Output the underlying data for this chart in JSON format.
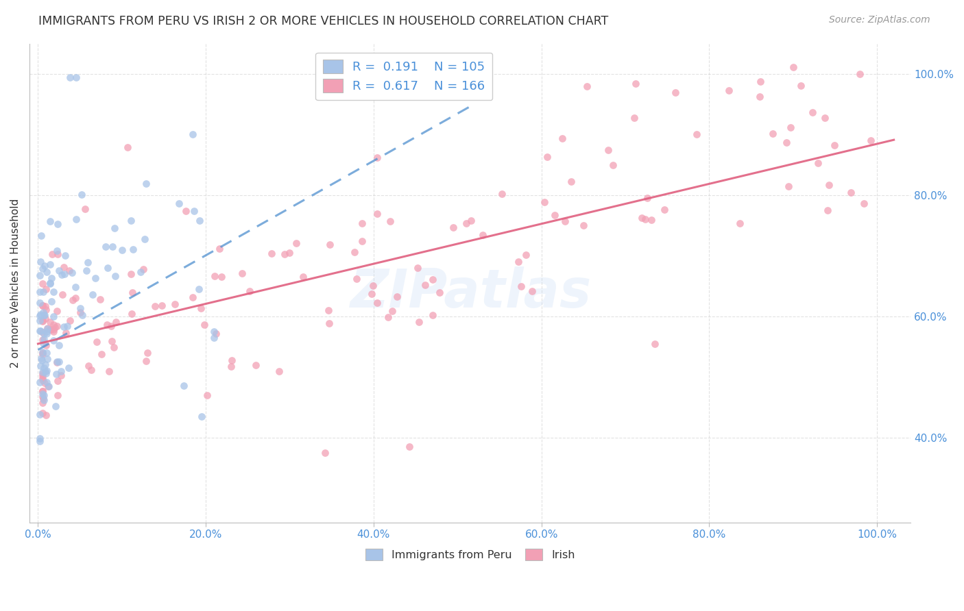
{
  "title": "IMMIGRANTS FROM PERU VS IRISH 2 OR MORE VEHICLES IN HOUSEHOLD CORRELATION CHART",
  "source": "Source: ZipAtlas.com",
  "ylabel": "2 or more Vehicles in Household",
  "watermark": "ZIPatlas",
  "legend_blue_r": "0.191",
  "legend_blue_n": "105",
  "legend_pink_r": "0.617",
  "legend_pink_n": "166",
  "blue_color": "#a8c4e8",
  "pink_color": "#f2a0b5",
  "blue_line_color": "#5090d0",
  "pink_line_color": "#e06080",
  "axis_label_color": "#4a90d9",
  "title_color": "#333333",
  "background_color": "#ffffff",
  "grid_color": "#d0d0d0",
  "xlim_min": -0.01,
  "xlim_max": 1.04,
  "ylim_min": 0.26,
  "ylim_max": 1.05,
  "blue_seed": 77,
  "pink_seed": 42
}
